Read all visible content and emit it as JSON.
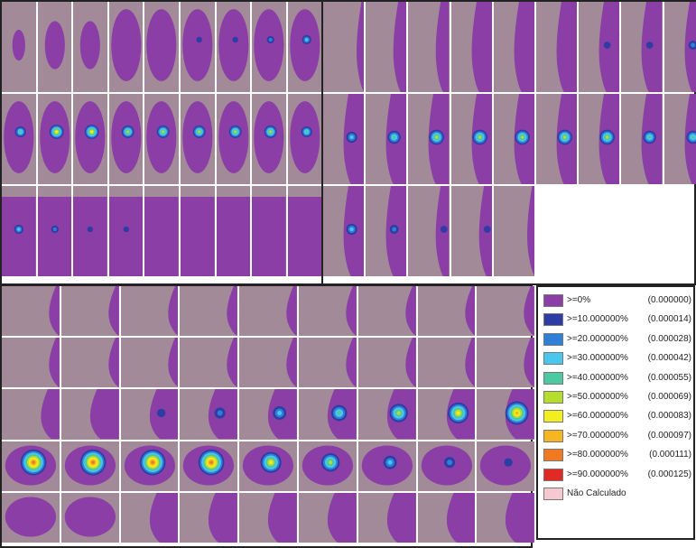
{
  "figure": {
    "panel_top_left": {
      "rows": [
        {
          "tiles": [
            {
              "tissue": "blob-s",
              "dose": 0
            },
            {
              "tissue": "blob-m",
              "dose": 0
            },
            {
              "tissue": "blob-m",
              "dose": 0
            },
            {
              "tissue": "blob-l",
              "dose": 0
            },
            {
              "tissue": "blob-l",
              "dose": 0
            },
            {
              "tissue": "blob-l",
              "dose": 1
            },
            {
              "tissue": "blob-l",
              "dose": 1
            },
            {
              "tissue": "blob-l",
              "dose": 2
            },
            {
              "tissue": "blob-l",
              "dose": 3
            }
          ]
        },
        {
          "tiles": [
            {
              "tissue": "blob-l",
              "dose": 4
            },
            {
              "tissue": "blob-l",
              "dose": 6
            },
            {
              "tissue": "blob-l",
              "dose": 6
            },
            {
              "tissue": "blob-l",
              "dose": 5
            },
            {
              "tissue": "blob-l",
              "dose": 5
            },
            {
              "tissue": "blob-l",
              "dose": 5
            },
            {
              "tissue": "blob-l",
              "dose": 5
            },
            {
              "tissue": "blob-l",
              "dose": 5
            },
            {
              "tissue": "blob-l",
              "dose": 4
            }
          ]
        },
        {
          "tiles": [
            {
              "tissue": "full",
              "dose": 3
            },
            {
              "tissue": "full",
              "dose": 2
            },
            {
              "tissue": "full",
              "dose": 1
            },
            {
              "tissue": "full",
              "dose": 1
            },
            {
              "tissue": "full",
              "dose": 0
            },
            {
              "tissue": "full",
              "dose": 0
            },
            {
              "tissue": "full",
              "dose": 0
            },
            {
              "tissue": "full",
              "dose": 0
            },
            {
              "tissue": "full",
              "dose": 0
            }
          ]
        }
      ]
    },
    "panel_top_right": {
      "rows": [
        {
          "tiles": [
            {
              "tissue": "edge-s",
              "dose": 0
            },
            {
              "tissue": "edge-m",
              "dose": 0
            },
            {
              "tissue": "edge-m",
              "dose": 0
            },
            {
              "tissue": "edge-l",
              "dose": 0
            },
            {
              "tissue": "edge-l",
              "dose": 0
            },
            {
              "tissue": "edge-l",
              "dose": 0
            },
            {
              "tissue": "edge-l",
              "dose": 1
            },
            {
              "tissue": "edge-l",
              "dose": 1
            },
            {
              "tissue": "edge-l",
              "dose": 2
            }
          ]
        },
        {
          "tiles": [
            {
              "tissue": "edge-l",
              "dose": 3
            },
            {
              "tissue": "edge-l",
              "dose": 4
            },
            {
              "tissue": "edge-l",
              "dose": 5
            },
            {
              "tissue": "edge-l",
              "dose": 5
            },
            {
              "tissue": "edge-l",
              "dose": 5
            },
            {
              "tissue": "edge-l",
              "dose": 5
            },
            {
              "tissue": "edge-l",
              "dose": 5
            },
            {
              "tissue": "edge-l",
              "dose": 4
            },
            {
              "tissue": "edge-l",
              "dose": 4
            }
          ]
        },
        {
          "tiles": [
            {
              "tissue": "edge-l",
              "dose": 3
            },
            {
              "tissue": "edge-l",
              "dose": 2
            },
            {
              "tissue": "edge-m",
              "dose": 1
            },
            {
              "tissue": "edge-m",
              "dose": 1
            },
            {
              "tissue": "edge-s",
              "dose": 0
            }
          ]
        }
      ]
    },
    "panel_bottom": {
      "rows": [
        {
          "tiles": [
            {
              "tissue": "edge-s",
              "dose": 0
            },
            {
              "tissue": "edge-s",
              "dose": 0
            },
            {
              "tissue": "edge-s",
              "dose": 0
            },
            {
              "tissue": "edge-s",
              "dose": 0
            },
            {
              "tissue": "edge-s",
              "dose": 0
            },
            {
              "tissue": "edge-s",
              "dose": 0
            },
            {
              "tissue": "edge-s",
              "dose": 0
            },
            {
              "tissue": "edge-s",
              "dose": 0
            },
            {
              "tissue": "edge-s",
              "dose": 0
            }
          ]
        },
        {
          "tiles": [
            {
              "tissue": "edge-s",
              "dose": 0
            },
            {
              "tissue": "edge-s",
              "dose": 0
            },
            {
              "tissue": "edge-s",
              "dose": 0
            },
            {
              "tissue": "edge-s",
              "dose": 0
            },
            {
              "tissue": "edge-s",
              "dose": 0
            },
            {
              "tissue": "edge-s",
              "dose": 0
            },
            {
              "tissue": "edge-s",
              "dose": 0
            },
            {
              "tissue": "edge-s",
              "dose": 0
            },
            {
              "tissue": "edge-s",
              "dose": 0
            }
          ]
        },
        {
          "tiles": [
            {
              "tissue": "edge-m",
              "dose": 0
            },
            {
              "tissue": "edge-l",
              "dose": 0
            },
            {
              "tissue": "edge-l",
              "dose": 1
            },
            {
              "tissue": "edge-l",
              "dose": 2
            },
            {
              "tissue": "edge-l",
              "dose": 3
            },
            {
              "tissue": "edge-l",
              "dose": 4
            },
            {
              "tissue": "edge-l",
              "dose": 5
            },
            {
              "tissue": "edge-l",
              "dose": 6
            },
            {
              "tissue": "edge-l",
              "dose": 7
            }
          ]
        },
        {
          "tiles": [
            {
              "tissue": "blob-l",
              "dose": 8
            },
            {
              "tissue": "blob-l",
              "dose": 8
            },
            {
              "tissue": "blob-l",
              "dose": 8
            },
            {
              "tissue": "blob-l",
              "dose": 8
            },
            {
              "tissue": "blob-l",
              "dose": 6
            },
            {
              "tissue": "blob-l",
              "dose": 5
            },
            {
              "tissue": "blob-l",
              "dose": 3
            },
            {
              "tissue": "blob-l",
              "dose": 2
            },
            {
              "tissue": "blob-l",
              "dose": 1
            }
          ]
        },
        {
          "tiles": [
            {
              "tissue": "blob-l",
              "dose": 0
            },
            {
              "tissue": "blob-l",
              "dose": 0
            },
            {
              "tissue": "edge-l",
              "dose": 0
            },
            {
              "tissue": "edge-l",
              "dose": 0
            },
            {
              "tissue": "edge-l",
              "dose": 0
            },
            {
              "tissue": "edge-l",
              "dose": 0
            },
            {
              "tissue": "edge-l",
              "dose": 0
            },
            {
              "tissue": "edge-l",
              "dose": 0
            },
            {
              "tissue": "edge-l",
              "dose": 0
            }
          ]
        }
      ]
    }
  },
  "legend": {
    "items": [
      {
        "label": ">=0%",
        "value": "(0.000000)",
        "color": "#8a3ea6"
      },
      {
        "label": ">=10.000000%",
        "value": "(0.000014)",
        "color": "#2e3da3"
      },
      {
        "label": ">=20.000000%",
        "value": "(0.000028)",
        "color": "#2f7fd6"
      },
      {
        "label": ">=30.000000%",
        "value": "(0.000042)",
        "color": "#49c7ef"
      },
      {
        "label": ">=40.000000%",
        "value": "(0.000055)",
        "color": "#4cc9a0"
      },
      {
        "label": ">=50.000000%",
        "value": "(0.000069)",
        "color": "#b5dc2e"
      },
      {
        "label": ">=60.000000%",
        "value": "(0.000083)",
        "color": "#f3ef1e"
      },
      {
        "label": ">=70.000000%",
        "value": "(0.000097)",
        "color": "#f6b621"
      },
      {
        "label": ">=80.000000%",
        "value": "(0.000111)",
        "color": "#f07a22"
      },
      {
        "label": ">=90.000000%",
        "value": "(0.000125)",
        "color": "#e22a24"
      },
      {
        "label": "Não Calculado",
        "value": "",
        "color": "#f4c9cf"
      }
    ]
  },
  "colors": {
    "background": "#a38a99",
    "tissue": "#8a3ea6",
    "separator": "#ffffff",
    "frame": "#222222"
  }
}
